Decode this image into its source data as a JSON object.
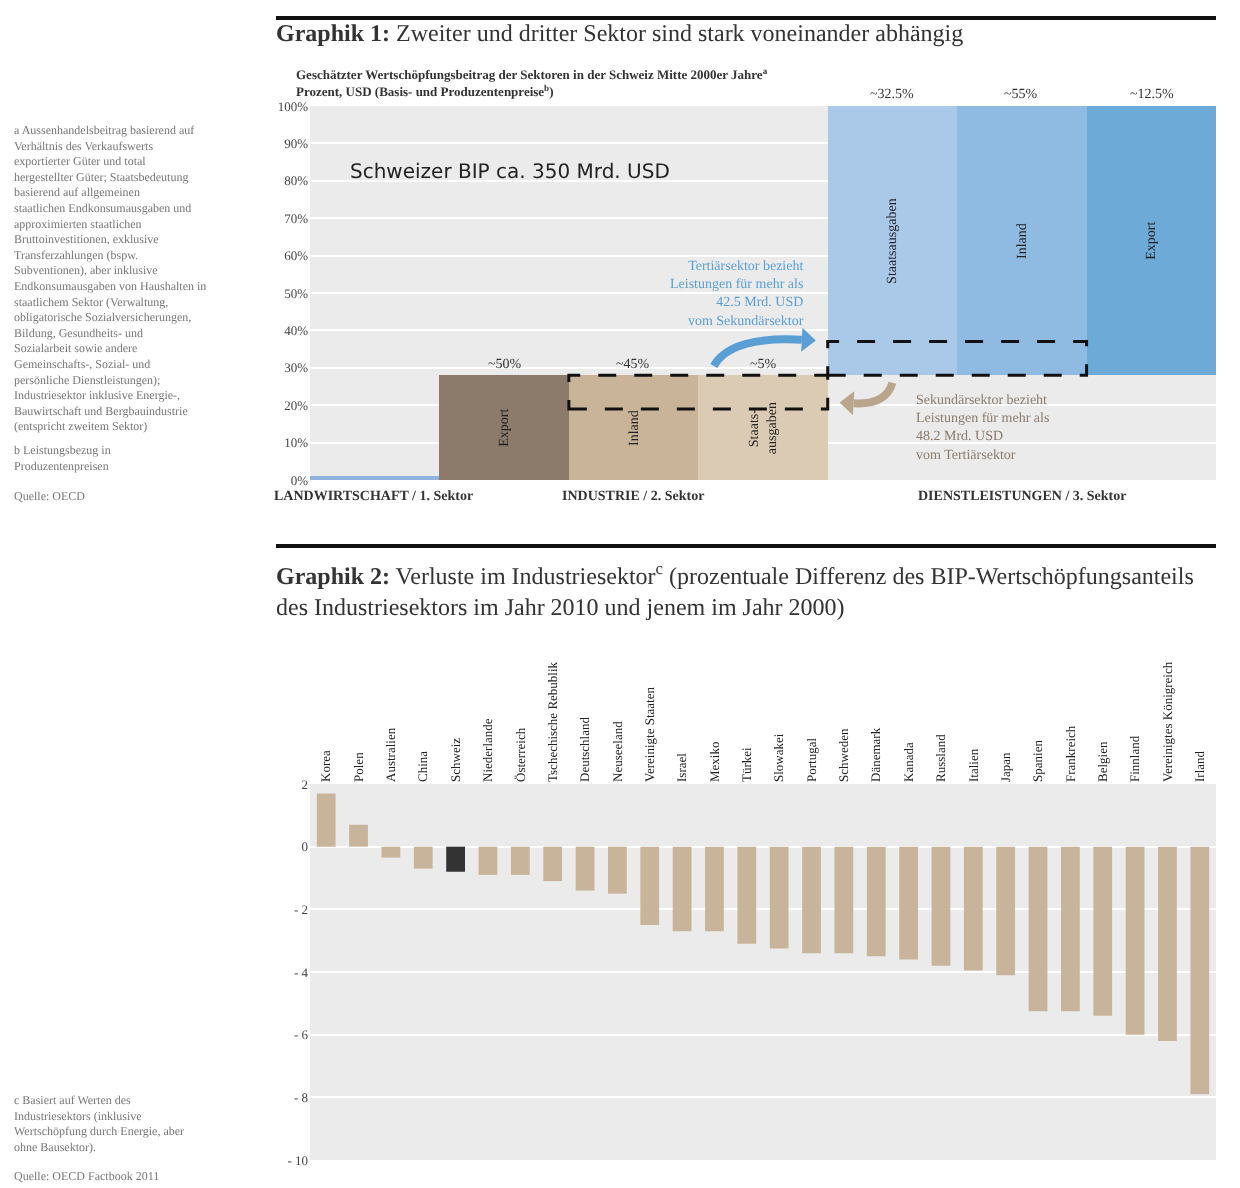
{
  "chart_data": [
    {
      "type": "bar",
      "title": "Graphik 1: Zweiter und dritter Sektor sind stark voneinander abhängig",
      "subtitle": "Geschätzter Wertschöpfungsbeitrag der Sektoren in der Schweiz Mitte 2000er Jahre$^{a}$\nProzent, USD (Basis- und Produzentenpreise$^{b}$)",
      "categories": [
        null,
        "Export",
        "Inland",
        "Staats-\nausgaben",
        "Staatsausgaben",
        "Inland",
        "Export"
      ],
      "values": [
        1,
        28,
        28,
        28,
        72,
        72,
        72
      ],
      "base": [
        0,
        0,
        0,
        0,
        28,
        28,
        28
      ],
      "colors": [
        "#8fb4dd",
        "#8c7b6b",
        "#c9b49a",
        "#dccbb4",
        "#aac9e8",
        "#8fbae2",
        "#6eaad8"
      ],
      "ylim": [
        0,
        100
      ],
      "yticks": [
        {
          "value": 0,
          "label": "0%"
        },
        {
          "value": 10,
          "label": "10%"
        },
        {
          "value": 20,
          "label": "20%"
        },
        {
          "value": 30,
          "label": "30%"
        },
        {
          "value": 40,
          "label": "40%"
        },
        {
          "value": 50,
          "label": "50%"
        },
        {
          "value": 60,
          "label": "60%"
        },
        {
          "value": 70,
          "label": "70%"
        },
        {
          "value": 80,
          "label": "80%"
        },
        {
          "value": 90,
          "label": "90%"
        },
        {
          "value": 100,
          "label": "100%"
        }
      ],
      "grid": "y",
      "tick_labels": "y",
      "annotations": [
        "Schweizer BIP ca. 350 Mrd. USD",
        "Tertiärsektor bezieht\nLeistungen für mehr als\n42.5 Mrd. USD\nvom Sekundärsektor",
        "Sekundärsektor bezieht\nLeistungen für mehr als\n48.2 Mrd. USD\nvom Tertiärsektor",
        "LANDWIRTSCHAFT / 1. Sektor",
        "INDUSTRIE / 2. Sektor",
        "DIENSTLEISTUNGEN / 3. Sektor",
        "~50%",
        "~45%",
        "~5%",
        "~32.5%",
        "~55%",
        "~12.5%",
        "a Aussenhandelsbeitrag basierend auf Verhältnis des Verkaufswerts exportierter Güter und total hergestellter Güter; Staatsbedeutung basierend auf allgemeinen staatlichen Endkonsumausgaben und approximierten staatlichen Bruttoinvestitionen, exklusive Transferzahlungen (bspw. Subventionen), aber inklusive Endkonsumausgaben von Haushalten in staatlichem Sektor (Verwaltung, obligatorische Sozialversicherungen, Bildung, Gesundheits- und Sozialarbeit sowie andere Gemeinschafts-, Sozial- und persönliche Dienstleistungen); Industriesektor inklusive Energie-, Bauwirtschaft und Bergbauindustrie (entspricht zweitem Sektor)",
        "b Leistungsbezug in Produzentenpreisen",
        "Quelle: OECD"
      ]
    },
    {
      "type": "bar",
      "title": "Graphik 2: Verluste im Industriesektor$^{c}$ (prozentuale Differenz des BIP-Wertschöpfungsanteils\ndes Industriesektors im Jahr 2010 und jenem im Jahr 2000)",
      "categories": [
        "Korea",
        "Polen",
        "Australien",
        "China",
        "Schweiz",
        "Niederlande",
        "Österreich",
        "Tschechische Rebublik",
        "Deutschland",
        "Neuseeland",
        "Vereinigte Staaten",
        "Israel",
        "Mexiko",
        "Türkei",
        "Slowakei",
        "Portugal",
        "Schweden",
        "Dänemark",
        "Kanada",
        "Russland",
        "Italien",
        "Japan",
        "Spanien",
        "Frankreich",
        "Belgien",
        "Finnland",
        "Vereinigtes Königreich",
        "Irland"
      ],
      "values": [
        1.7,
        0.7,
        -0.35,
        -0.7,
        -0.8,
        -0.9,
        -0.9,
        -1.1,
        -1.4,
        -1.5,
        -2.5,
        -2.7,
        -2.7,
        -3.1,
        -3.25,
        -3.4,
        -3.4,
        -3.5,
        -3.6,
        -3.8,
        -3.95,
        -4.1,
        -5.25,
        -5.25,
        -5.4,
        -6.0,
        -6.2,
        -7.9
      ],
      "colors": [
        "#c8b49a",
        "#c8b49a",
        "#c8b49a",
        "#c8b49a",
        "#333333",
        "#c8b49a",
        "#c8b49a",
        "#c8b49a",
        "#c8b49a",
        "#c8b49a",
        "#c8b49a",
        "#c8b49a",
        "#c8b49a",
        "#c8b49a",
        "#c8b49a",
        "#c8b49a",
        "#c8b49a",
        "#c8b49a",
        "#c8b49a",
        "#c8b49a",
        "#c8b49a",
        "#c8b49a",
        "#c8b49a",
        "#c8b49a",
        "#c8b49a",
        "#c8b49a",
        "#c8b49a",
        "#c8b49a"
      ],
      "ylim": [
        -10,
        2
      ],
      "yticks": [
        2,
        0,
        {
          "value": -2,
          "label": "- 2"
        },
        {
          "value": -4,
          "label": "- 4"
        },
        {
          "value": -6,
          "label": "- 6"
        },
        {
          "value": -8,
          "label": "- 8"
        },
        {
          "value": -10,
          "label": "- 10"
        }
      ],
      "grid": "y",
      "annotations": [
        "c Basiert auf Werten des Industriesektors (inklusive Wertschöpfung durch Energie, aber ohne Bausektor).",
        "Quelle: OECD Factbook 2011"
      ]
    }
  ]
}
